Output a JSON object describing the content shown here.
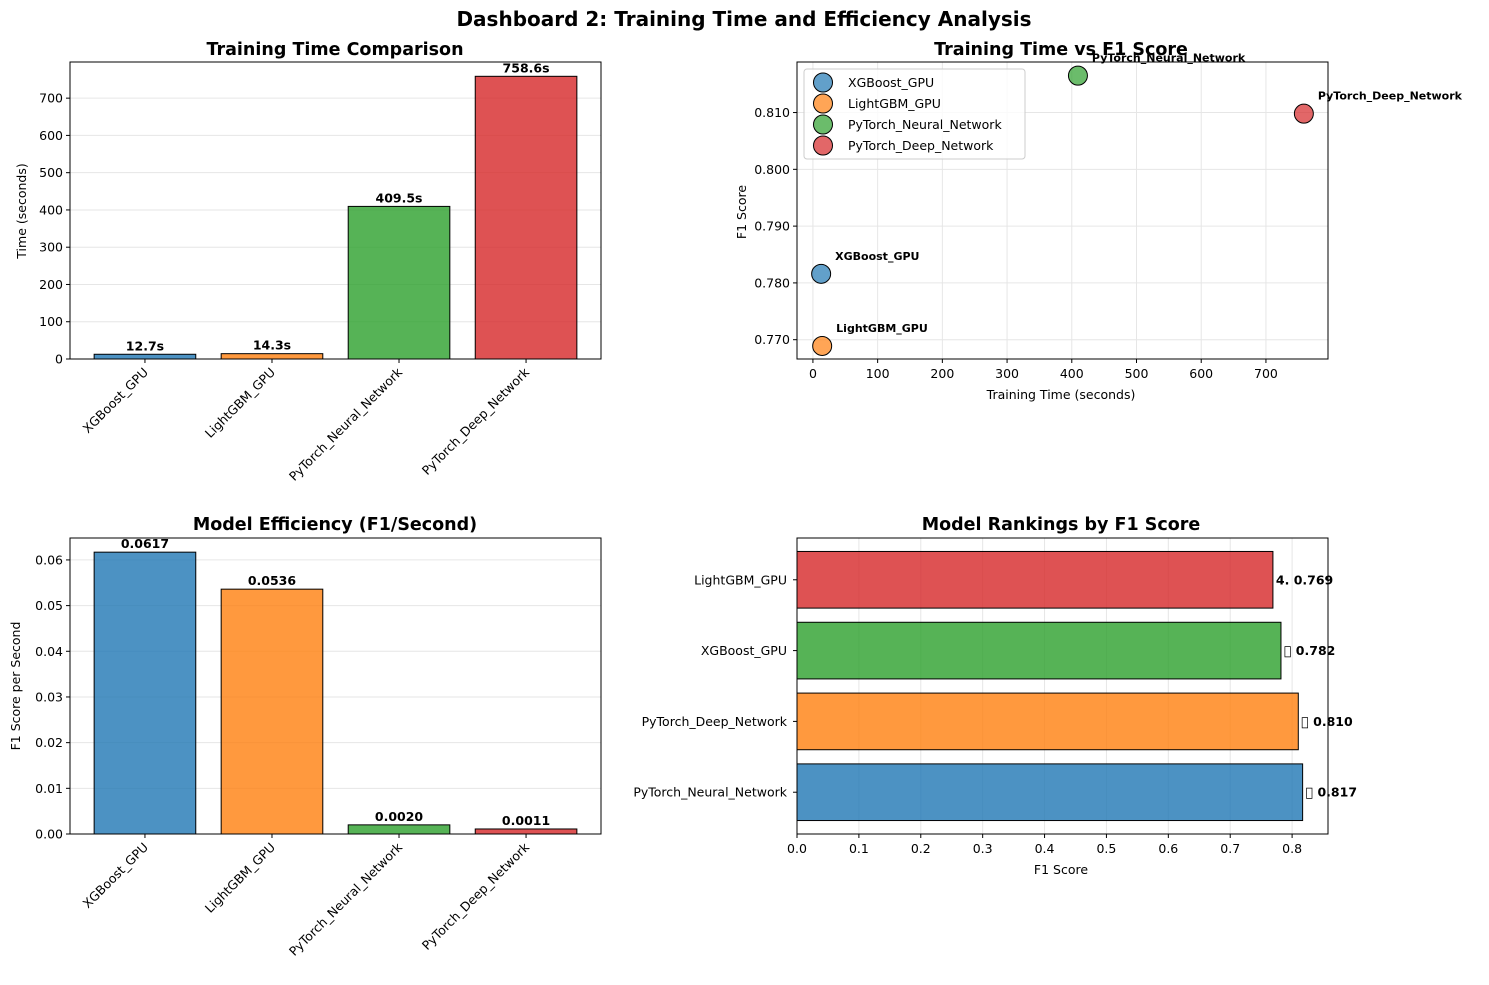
{
  "page_title": "Dashboard 2: Training Time and Efficiency Analysis",
  "colors": {
    "blue": "#1f77b4",
    "orange": "#ff7f0e",
    "green": "#2ca02c",
    "red": "#d62728"
  },
  "chart_data": [
    {
      "type": "bar",
      "title": "Training Time Comparison",
      "xlabel": "",
      "ylabel": "Time (seconds)",
      "categories": [
        "XGBoost_GPU",
        "LightGBM_GPU",
        "PyTorch_Neural_Network",
        "PyTorch_Deep_Network"
      ],
      "values": [
        12.7,
        14.3,
        409.5,
        758.6
      ],
      "data_labels": [
        "12.7s",
        "14.3s",
        "409.5s",
        "758.6s"
      ],
      "bar_colors": [
        "#1f77b4",
        "#ff7f0e",
        "#2ca02c",
        "#d62728"
      ],
      "ylim": [
        0,
        797
      ],
      "yticks": [
        0,
        100,
        200,
        300,
        400,
        500,
        600,
        700
      ],
      "ytick_labels": [
        "0",
        "100",
        "200",
        "300",
        "400",
        "500",
        "600",
        "700"
      ],
      "grid": "y"
    },
    {
      "type": "scatter",
      "title": "Training Time vs F1 Score",
      "xlabel": "Training Time (seconds)",
      "ylabel": "F1 Score",
      "series": [
        {
          "name": "XGBoost_GPU",
          "x": 12.7,
          "y": 0.7816,
          "color": "#1f77b4",
          "label": "XGBoost_GPU"
        },
        {
          "name": "LightGBM_GPU",
          "x": 14.3,
          "y": 0.7689,
          "color": "#ff7f0e",
          "label": "LightGBM_GPU"
        },
        {
          "name": "PyTorch_Neural_Network",
          "x": 409.5,
          "y": 0.8165,
          "color": "#2ca02c",
          "label": "PyTorch_Neural_Network"
        },
        {
          "name": "PyTorch_Deep_Network",
          "x": 758.6,
          "y": 0.8098,
          "color": "#d62728",
          "label": "PyTorch_Deep_Network"
        }
      ],
      "xlim": [
        -24.6,
        795.9
      ],
      "ylim": [
        0.7666,
        0.8189
      ],
      "xticks": [
        0,
        100,
        200,
        300,
        400,
        500,
        600,
        700
      ],
      "xtick_labels": [
        "0",
        "100",
        "200",
        "300",
        "400",
        "500",
        "600",
        "700"
      ],
      "yticks": [
        0.77,
        0.78,
        0.79,
        0.8,
        0.81
      ],
      "ytick_labels": [
        "0.770",
        "0.780",
        "0.790",
        "0.800",
        "0.810"
      ],
      "legend": "upper-left",
      "grid": "both"
    },
    {
      "type": "bar",
      "title": "Model Efficiency (F1/Second)",
      "xlabel": "",
      "ylabel": "F1 Score per Second",
      "categories": [
        "XGBoost_GPU",
        "LightGBM_GPU",
        "PyTorch_Neural_Network",
        "PyTorch_Deep_Network"
      ],
      "values": [
        0.0617,
        0.0536,
        0.002,
        0.0011
      ],
      "data_labels": [
        "0.0617",
        "0.0536",
        "0.0020",
        "0.0011"
      ],
      "bar_colors": [
        "#1f77b4",
        "#ff7f0e",
        "#2ca02c",
        "#d62728"
      ],
      "ylim": [
        0,
        0.0648
      ],
      "yticks": [
        0,
        0.01,
        0.02,
        0.03,
        0.04,
        0.05,
        0.06
      ],
      "ytick_labels": [
        "0.00",
        "0.01",
        "0.02",
        "0.03",
        "0.04",
        "0.05",
        "0.06"
      ],
      "grid": "y"
    },
    {
      "type": "bar",
      "orientation": "horizontal",
      "title": "Model Rankings by F1 Score",
      "xlabel": "F1 Score",
      "ylabel": "",
      "categories": [
        "PyTorch_Neural_Network",
        "PyTorch_Deep_Network",
        "XGBoost_GPU",
        "LightGBM_GPU"
      ],
      "values": [
        0.817,
        0.81,
        0.782,
        0.769
      ],
      "data_labels": [
        "\u0000 0.817",
        "\u0000 0.810",
        "\u0000 0.782",
        "4. 0.769"
      ],
      "bar_colors": [
        "#1f77b4",
        "#ff7f0e",
        "#2ca02c",
        "#d62728"
      ],
      "xlim": [
        0,
        0.858
      ],
      "xticks": [
        0,
        0.1,
        0.2,
        0.3,
        0.4,
        0.5,
        0.6,
        0.7,
        0.8
      ],
      "xtick_labels": [
        "0.0",
        "0.1",
        "0.2",
        "0.3",
        "0.4",
        "0.5",
        "0.6",
        "0.7",
        "0.8"
      ],
      "grid": "x"
    }
  ]
}
